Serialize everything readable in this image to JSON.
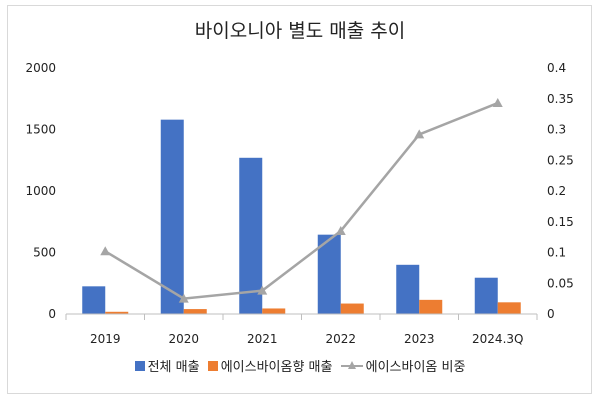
{
  "chart_data": {
    "type": "bar",
    "title": "바이오니아 별도 매출 추이",
    "categories": [
      "2019",
      "2020",
      "2021",
      "2022",
      "2023",
      "2024.3Q"
    ],
    "series": [
      {
        "name": "전체 매출",
        "kind": "bar",
        "axis": "left",
        "color": "#4472c4",
        "values": [
          225,
          1580,
          1270,
          645,
          400,
          295
        ]
      },
      {
        "name": "에이스바이옴향 매출",
        "kind": "bar",
        "axis": "left",
        "color": "#ed7d31",
        "values": [
          18,
          40,
          45,
          85,
          115,
          95
        ]
      },
      {
        "name": "에이스바이옴 비중",
        "kind": "line",
        "axis": "right",
        "color": "#a5a5a5",
        "marker": "triangle",
        "values": [
          0.102,
          0.025,
          0.038,
          0.135,
          0.292,
          0.343
        ]
      }
    ],
    "y_left": {
      "min": 0,
      "max": 2000,
      "ticks": [
        0,
        500,
        1000,
        1500,
        2000
      ],
      "tick_labels": [
        "0",
        "500",
        "1000",
        "1500",
        "2000"
      ]
    },
    "y_right": {
      "min": 0,
      "max": 0.4,
      "ticks": [
        0,
        0.05,
        0.1,
        0.15,
        0.2,
        0.25,
        0.3,
        0.35,
        0.4
      ],
      "tick_labels": [
        "0",
        "0.05",
        "0.1",
        "0.15",
        "0.2",
        "0.25",
        "0.3",
        "0.35",
        "0.4"
      ]
    },
    "grid": false,
    "legend": "bottom"
  }
}
